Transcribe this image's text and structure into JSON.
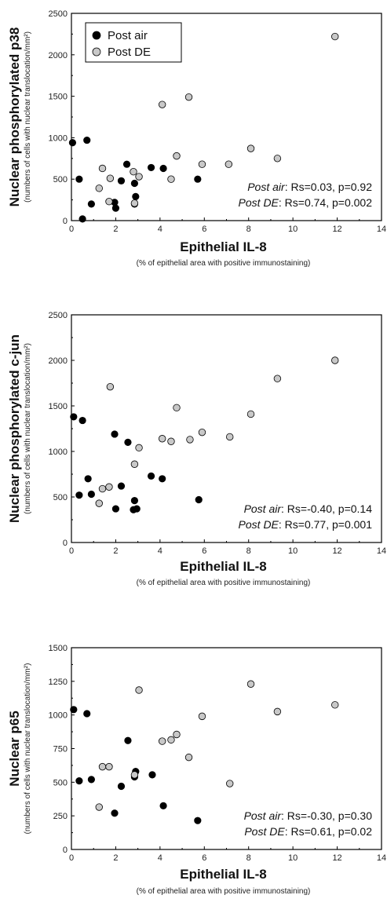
{
  "chart_data": [
    {
      "type": "scatter",
      "title": "",
      "ylabel": "Nuclear phosphorylated p38",
      "ylabel_sub": "(numbers of cells with nuclear translocation/mm²)",
      "xlabel": "Epithelial IL-8",
      "xlabel_sub": "(% of epithelial area with positive immunostaining)",
      "xlim": [
        0,
        14
      ],
      "ylim": [
        0,
        2500
      ],
      "xticks": [
        "0",
        "2",
        "4",
        "6",
        "8",
        "10",
        "12",
        "14"
      ],
      "yticks": [
        "0",
        "500",
        "1000",
        "1500",
        "2000",
        "2500"
      ],
      "legend": {
        "placement": "top-left",
        "entries": [
          "Post air",
          "Post DE"
        ]
      },
      "stats": [
        {
          "label": "Post air",
          "text": ": Rs=0.03, p=0.92"
        },
        {
          "label": "Post DE",
          "text": ": Rs=0.74, p=0.002"
        }
      ],
      "series": [
        {
          "name": "Post air",
          "color": "#000000",
          "points": [
            [
              0.05,
              940
            ],
            [
              0.35,
              500
            ],
            [
              0.5,
              20
            ],
            [
              0.7,
              970
            ],
            [
              0.9,
              200
            ],
            [
              1.95,
              220
            ],
            [
              2.0,
              150
            ],
            [
              2.25,
              480
            ],
            [
              2.5,
              680
            ],
            [
              2.85,
              200
            ],
            [
              2.85,
              450
            ],
            [
              2.9,
              290
            ],
            [
              3.6,
              640
            ],
            [
              4.15,
              630
            ],
            [
              5.7,
              500
            ]
          ]
        },
        {
          "name": "Post DE",
          "color": "#c8c8c8",
          "points": [
            [
              1.25,
              390
            ],
            [
              1.4,
              630
            ],
            [
              1.7,
              230
            ],
            [
              1.75,
              510
            ],
            [
              2.8,
              590
            ],
            [
              2.85,
              210
            ],
            [
              3.05,
              530
            ],
            [
              4.1,
              1400
            ],
            [
              4.5,
              500
            ],
            [
              4.75,
              780
            ],
            [
              5.3,
              1490
            ],
            [
              5.9,
              680
            ],
            [
              7.1,
              680
            ],
            [
              8.1,
              870
            ],
            [
              9.3,
              750
            ],
            [
              11.9,
              2220
            ]
          ]
        }
      ]
    },
    {
      "type": "scatter",
      "title": "",
      "ylabel": "Nuclear phosphorylated c-jun",
      "ylabel_sub": "(numbers of cells with nuclear translocation/mm²)",
      "xlabel": "Epithelial IL-8",
      "xlabel_sub": "(% of epithelial area with positive immunostaining)",
      "xlim": [
        0,
        14
      ],
      "ylim": [
        0,
        2500
      ],
      "xticks": [
        "0",
        "2",
        "4",
        "6",
        "8",
        "10",
        "12",
        "14"
      ],
      "yticks": [
        "0",
        "500",
        "1000",
        "1500",
        "2000",
        "2500"
      ],
      "stats": [
        {
          "label": "Post air",
          "text": ": Rs=-0.40, p=0.14"
        },
        {
          "label": "Post DE",
          "text": ": Rs=0.77, p=0.001"
        }
      ],
      "series": [
        {
          "name": "Post air",
          "color": "#000000",
          "points": [
            [
              0.1,
              1380
            ],
            [
              0.35,
              520
            ],
            [
              0.5,
              1340
            ],
            [
              0.75,
              700
            ],
            [
              0.9,
              530
            ],
            [
              1.95,
              1190
            ],
            [
              2.0,
              370
            ],
            [
              2.25,
              620
            ],
            [
              2.55,
              1100
            ],
            [
              2.8,
              360
            ],
            [
              2.85,
              460
            ],
            [
              2.95,
              370
            ],
            [
              3.6,
              730
            ],
            [
              4.1,
              700
            ],
            [
              5.75,
              470
            ]
          ]
        },
        {
          "name": "Post DE",
          "color": "#c8c8c8",
          "points": [
            [
              1.25,
              430
            ],
            [
              1.4,
              590
            ],
            [
              1.7,
              610
            ],
            [
              1.75,
              1710
            ],
            [
              2.85,
              860
            ],
            [
              3.05,
              1040
            ],
            [
              4.1,
              1140
            ],
            [
              4.5,
              1110
            ],
            [
              4.75,
              1480
            ],
            [
              5.35,
              1130
            ],
            [
              5.9,
              1210
            ],
            [
              7.15,
              1160
            ],
            [
              8.1,
              1410
            ],
            [
              9.3,
              1800
            ],
            [
              11.9,
              2000
            ]
          ]
        }
      ]
    },
    {
      "type": "scatter",
      "title": "",
      "ylabel": "Nuclear p65",
      "ylabel_sub": "(numbers of cells with nuclear translocation/mm²)",
      "xlabel": "Epithelial IL-8",
      "xlabel_sub": "(% of epithelial area with positive immunostaining)",
      "xlim": [
        0,
        14
      ],
      "ylim": [
        0,
        1500
      ],
      "xticks": [
        "0",
        "2",
        "4",
        "6",
        "8",
        "10",
        "12",
        "14"
      ],
      "yticks": [
        "0",
        "250",
        "500",
        "750",
        "1000",
        "1250",
        "1500"
      ],
      "stats": [
        {
          "label": "Post air",
          "text": ": Rs=-0.30, p=0.30"
        },
        {
          "label": "Post DE",
          "text": ": Rs=0.61, p=0.02"
        }
      ],
      "series": [
        {
          "name": "Post air",
          "color": "#000000",
          "points": [
            [
              0.1,
              1040
            ],
            [
              0.35,
              510
            ],
            [
              0.7,
              1010
            ],
            [
              0.9,
              520
            ],
            [
              1.95,
              270
            ],
            [
              2.25,
              470
            ],
            [
              2.55,
              810
            ],
            [
              2.85,
              540
            ],
            [
              2.9,
              580
            ],
            [
              3.65,
              555
            ],
            [
              4.15,
              325
            ],
            [
              5.7,
              215
            ]
          ]
        },
        {
          "name": "Post DE",
          "color": "#c8c8c8",
          "points": [
            [
              1.25,
              315
            ],
            [
              1.4,
              615
            ],
            [
              1.7,
              615
            ],
            [
              2.85,
              555
            ],
            [
              3.05,
              1185
            ],
            [
              4.1,
              805
            ],
            [
              4.5,
              815
            ],
            [
              4.75,
              855
            ],
            [
              5.3,
              685
            ],
            [
              5.9,
              990
            ],
            [
              7.15,
              490
            ],
            [
              8.1,
              1230
            ],
            [
              9.3,
              1025
            ],
            [
              11.9,
              1075
            ]
          ]
        }
      ]
    }
  ]
}
